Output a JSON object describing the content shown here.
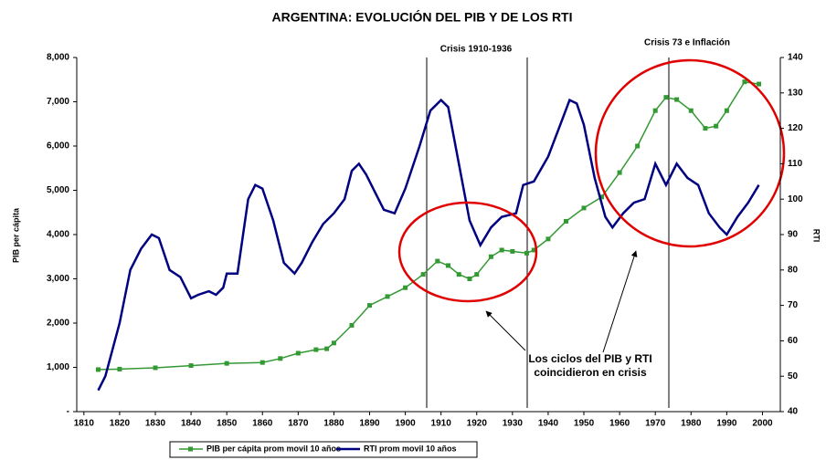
{
  "chart_data": {
    "type": "line",
    "title": "ARGENTINA: EVOLUCIÓN DEL PIB Y DE LOS RTI",
    "ylabel": "PIB per cápita",
    "y2label": "RTI",
    "annotations": [
      "Crisis 1910-1936",
      "Crisis 73 e Inflación",
      "Los ciclos del PIB y RTI",
      "coincidieron en crisis"
    ],
    "xlim": [
      1808,
      2005
    ],
    "xticks": [
      1810,
      1820,
      1830,
      1840,
      1850,
      1860,
      1870,
      1880,
      1890,
      1900,
      1910,
      1920,
      1930,
      1940,
      1950,
      1960,
      1970,
      1980,
      1990,
      2000
    ],
    "ylim": [
      0,
      8000
    ],
    "yticks": [
      {
        "value": 0,
        "label": "-"
      },
      {
        "value": 1000,
        "label": "1,000"
      },
      {
        "value": 2000,
        "label": "2,000"
      },
      {
        "value": 3000,
        "label": "3,000"
      },
      {
        "value": 4000,
        "label": "4,000"
      },
      {
        "value": 5000,
        "label": "5,000"
      },
      {
        "value": 6000,
        "label": "6,000"
      },
      {
        "value": 7000,
        "label": "7,000"
      },
      {
        "value": 8000,
        "label": "8,000"
      }
    ],
    "y2lim": [
      40,
      140
    ],
    "y2ticks": [
      40,
      50,
      60,
      70,
      80,
      90,
      100,
      110,
      120,
      130,
      140
    ],
    "series": [
      {
        "name": "PIB per cápita prom movil 10 años",
        "color": "#339933",
        "marker": "square",
        "x": [
          1814,
          1820,
          1830,
          1840,
          1850,
          1860,
          1865,
          1870,
          1875,
          1878,
          1880,
          1885,
          1890,
          1895,
          1900,
          1905,
          1909,
          1912,
          1915,
          1918,
          1920,
          1924,
          1927,
          1930,
          1934,
          1936,
          1940,
          1945,
          1950,
          1955,
          1960,
          1965,
          1970,
          1973,
          1976,
          1980,
          1984,
          1987,
          1990,
          1995,
          1999
        ],
        "values": [
          950,
          960,
          990,
          1040,
          1090,
          1110,
          1200,
          1320,
          1400,
          1420,
          1550,
          1950,
          2400,
          2600,
          2800,
          3100,
          3400,
          3300,
          3100,
          3000,
          3100,
          3500,
          3650,
          3620,
          3580,
          3650,
          3900,
          4300,
          4600,
          4850,
          5400,
          6000,
          6800,
          7100,
          7050,
          6800,
          6400,
          6450,
          6800,
          7450,
          7400
        ]
      },
      {
        "name": "RTI prom movil 10 años",
        "color": "#000080",
        "axis": "y2",
        "x": [
          1814,
          1816,
          1820,
          1823,
          1826,
          1829,
          1831,
          1834,
          1837,
          1840,
          1842,
          1845,
          1847,
          1849,
          1850,
          1853,
          1856,
          1858,
          1860,
          1863,
          1866,
          1869,
          1871,
          1874,
          1877,
          1880,
          1883,
          1885,
          1887,
          1889,
          1891,
          1894,
          1897,
          1900,
          1904,
          1907,
          1910,
          1912,
          1915,
          1918,
          1921,
          1924,
          1927,
          1931,
          1933,
          1936,
          1940,
          1943,
          1946,
          1948,
          1950,
          1953,
          1956,
          1958,
          1961,
          1964,
          1967,
          1970,
          1973,
          1976,
          1979,
          1982,
          1985,
          1988,
          1990,
          1993,
          1996,
          1999
        ],
        "values": [
          46,
          50,
          65,
          80,
          86,
          90,
          89,
          80,
          78,
          72,
          73,
          74,
          73,
          75,
          79,
          79,
          100,
          104,
          103,
          94,
          82,
          79,
          82,
          88,
          93,
          96,
          100,
          108,
          110,
          107,
          103,
          97,
          96,
          103,
          115,
          125,
          128,
          126,
          110,
          94,
          87,
          92,
          95,
          96,
          104,
          105,
          112,
          120,
          128,
          127,
          121,
          106,
          95,
          92,
          96,
          99,
          100,
          110,
          104,
          110,
          106,
          104,
          96,
          92,
          90,
          95,
          99,
          104
        ]
      }
    ]
  }
}
